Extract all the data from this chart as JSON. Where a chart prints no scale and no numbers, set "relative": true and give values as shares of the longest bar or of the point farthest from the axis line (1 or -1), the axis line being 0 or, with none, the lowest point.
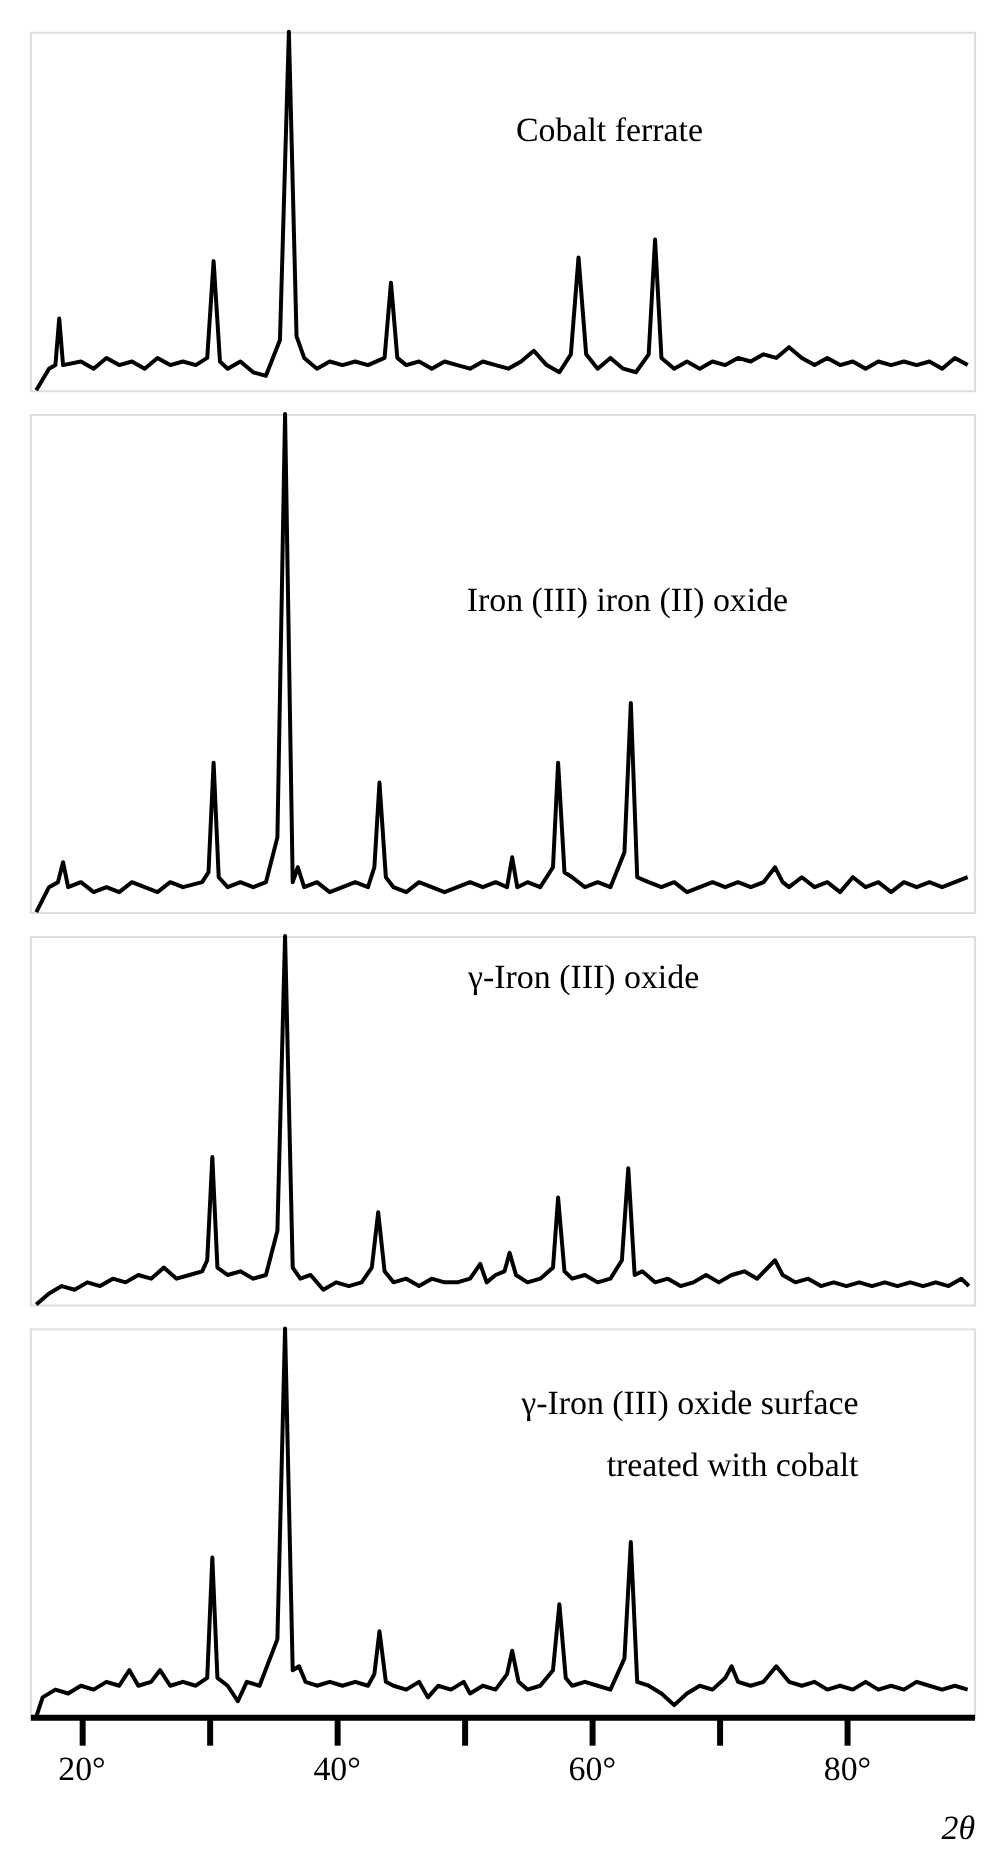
{
  "chart_data": [
    {
      "type": "line",
      "title": "Cobalt ferrate",
      "relative": true,
      "xlim": [
        16,
        90
      ],
      "tick_labels": false,
      "x": [
        16.5,
        17.5,
        18.0,
        18.3,
        18.6,
        20,
        21,
        22,
        23,
        24,
        25,
        26,
        27,
        28,
        29,
        29.9,
        30.4,
        30.9,
        31.5,
        32.5,
        33.5,
        34.5,
        35.6,
        36.3,
        36.9,
        37.5,
        38.5,
        39.5,
        40.5,
        41.5,
        42.5,
        43.8,
        44.3,
        44.8,
        45.5,
        46.5,
        47.5,
        48.5,
        49.5,
        50.5,
        51.5,
        52.5,
        53.5,
        54.5,
        55.5,
        56.5,
        57.5,
        58.4,
        59.0,
        59.6,
        60.5,
        61.5,
        62.5,
        63.5,
        64.5,
        65.0,
        65.5,
        66.5,
        67.5,
        68.5,
        69.5,
        70.5,
        71.5,
        72.5,
        73.5,
        74.5,
        75.5,
        76.5,
        77.5,
        78.5,
        79.5,
        80.5,
        81.5,
        82.5,
        83.5,
        84.5,
        85.5,
        86.5,
        87.5,
        88.5,
        89.5
      ],
      "series": [
        {
          "color": "#000000",
          "values": [
            0.0,
            0.06,
            0.07,
            0.2,
            0.07,
            0.08,
            0.06,
            0.09,
            0.07,
            0.08,
            0.06,
            0.09,
            0.07,
            0.08,
            0.07,
            0.09,
            0.36,
            0.08,
            0.06,
            0.08,
            0.05,
            0.04,
            0.14,
            1.0,
            0.15,
            0.09,
            0.06,
            0.08,
            0.07,
            0.08,
            0.07,
            0.09,
            0.3,
            0.09,
            0.07,
            0.08,
            0.06,
            0.08,
            0.07,
            0.06,
            0.08,
            0.07,
            0.06,
            0.08,
            0.11,
            0.07,
            0.05,
            0.1,
            0.37,
            0.1,
            0.06,
            0.09,
            0.06,
            0.05,
            0.1,
            0.42,
            0.09,
            0.06,
            0.08,
            0.06,
            0.08,
            0.07,
            0.09,
            0.08,
            0.1,
            0.09,
            0.12,
            0.09,
            0.07,
            0.09,
            0.07,
            0.08,
            0.06,
            0.08,
            0.07,
            0.08,
            0.07,
            0.08,
            0.06,
            0.09,
            0.07
          ]
        }
      ]
    },
    {
      "type": "line",
      "title": "Iron (III) iron (II) oxide",
      "relative": true,
      "xlim": [
        16,
        90
      ],
      "tick_labels": false,
      "x": [
        16.5,
        17.5,
        18.2,
        18.6,
        19.0,
        20,
        21,
        22,
        23,
        24,
        25,
        26,
        27,
        28,
        29.5,
        30.0,
        30.4,
        30.8,
        31.5,
        32.5,
        33.5,
        34.5,
        35.4,
        36.0,
        36.6,
        37.0,
        37.5,
        38.5,
        39.5,
        40.5,
        41.5,
        42.5,
        43.0,
        43.4,
        43.9,
        44.5,
        45.5,
        46.5,
        47.5,
        48.5,
        49.5,
        50.5,
        51.5,
        52.5,
        53.4,
        53.8,
        54.2,
        55.0,
        56.0,
        57.0,
        57.4,
        57.9,
        58.5,
        59.5,
        60.5,
        61.5,
        62.6,
        63.1,
        63.6,
        64.5,
        65.5,
        66.5,
        67.5,
        68.5,
        69.5,
        70.5,
        71.5,
        72.5,
        73.5,
        74.4,
        75.0,
        75.5,
        76.5,
        77.5,
        78.5,
        79.5,
        80.5,
        81.5,
        82.5,
        83.5,
        84.5,
        85.5,
        86.5,
        87.5,
        88.5,
        89.5
      ],
      "series": [
        {
          "color": "#000000",
          "values": [
            0.0,
            0.05,
            0.06,
            0.1,
            0.05,
            0.06,
            0.04,
            0.05,
            0.04,
            0.06,
            0.05,
            0.04,
            0.06,
            0.05,
            0.06,
            0.08,
            0.3,
            0.07,
            0.05,
            0.06,
            0.05,
            0.06,
            0.15,
            1.0,
            0.06,
            0.09,
            0.05,
            0.06,
            0.04,
            0.05,
            0.06,
            0.05,
            0.09,
            0.26,
            0.07,
            0.05,
            0.04,
            0.06,
            0.05,
            0.04,
            0.05,
            0.06,
            0.05,
            0.06,
            0.05,
            0.11,
            0.05,
            0.06,
            0.05,
            0.09,
            0.3,
            0.08,
            0.07,
            0.05,
            0.06,
            0.05,
            0.12,
            0.42,
            0.07,
            0.06,
            0.05,
            0.06,
            0.04,
            0.05,
            0.06,
            0.05,
            0.06,
            0.05,
            0.06,
            0.09,
            0.06,
            0.05,
            0.07,
            0.05,
            0.06,
            0.04,
            0.07,
            0.05,
            0.06,
            0.04,
            0.06,
            0.05,
            0.06,
            0.05,
            0.06,
            0.07
          ]
        }
      ]
    },
    {
      "type": "line",
      "title": "γ-Iron (III) oxide",
      "relative": true,
      "xlim": [
        16,
        90
      ],
      "tick_labels": false,
      "x": [
        16.5,
        17.5,
        18.5,
        19.5,
        20.5,
        21.5,
        22.5,
        23.5,
        24.5,
        25.5,
        26.5,
        27.5,
        28.5,
        29.5,
        29.9,
        30.3,
        30.7,
        31.5,
        32.5,
        33.5,
        34.5,
        35.4,
        36.0,
        36.6,
        37.2,
        38,
        39,
        40,
        41,
        42,
        42.8,
        43.3,
        43.8,
        44.5,
        45.5,
        46.5,
        47.5,
        48.5,
        49.5,
        50.5,
        51.3,
        51.8,
        52.5,
        53.2,
        53.6,
        54.1,
        55,
        56,
        57.0,
        57.4,
        57.9,
        58.5,
        59.5,
        60.5,
        61.5,
        62.4,
        62.9,
        63.4,
        64,
        65,
        66,
        67,
        68,
        69,
        70,
        71,
        72,
        73,
        74.4,
        75,
        76,
        77,
        78,
        79,
        80,
        81,
        82,
        83,
        84,
        85,
        86,
        87,
        88,
        89,
        89.6
      ],
      "series": [
        {
          "color": "#000000",
          "values": [
            0.0,
            0.03,
            0.05,
            0.04,
            0.06,
            0.05,
            0.07,
            0.06,
            0.08,
            0.07,
            0.1,
            0.07,
            0.08,
            0.09,
            0.12,
            0.4,
            0.1,
            0.08,
            0.09,
            0.07,
            0.08,
            0.2,
            1.0,
            0.1,
            0.07,
            0.08,
            0.04,
            0.06,
            0.05,
            0.06,
            0.1,
            0.25,
            0.09,
            0.06,
            0.07,
            0.05,
            0.07,
            0.06,
            0.06,
            0.07,
            0.11,
            0.06,
            0.08,
            0.09,
            0.14,
            0.08,
            0.06,
            0.07,
            0.1,
            0.29,
            0.09,
            0.07,
            0.08,
            0.06,
            0.07,
            0.12,
            0.37,
            0.08,
            0.09,
            0.06,
            0.07,
            0.05,
            0.06,
            0.08,
            0.06,
            0.08,
            0.09,
            0.07,
            0.12,
            0.08,
            0.06,
            0.07,
            0.05,
            0.06,
            0.05,
            0.06,
            0.05,
            0.06,
            0.05,
            0.06,
            0.05,
            0.06,
            0.05,
            0.07,
            0.05
          ]
        }
      ]
    },
    {
      "type": "line",
      "title": "γ-Iron (III) oxide surface\ntreated with cobalt",
      "relative": true,
      "xlim": [
        16,
        90
      ],
      "tick_labels": "x",
      "xlabel": "2θ",
      "xticks": [
        {
          "value": 20,
          "label": "20°"
        },
        {
          "value": 30,
          "label": null
        },
        {
          "value": 40,
          "label": "40°"
        },
        {
          "value": 50,
          "label": null
        },
        {
          "value": 60,
          "label": "60°"
        },
        {
          "value": 70,
          "label": null
        },
        {
          "value": 80,
          "label": "80°"
        }
      ],
      "x": [
        16.5,
        17,
        18,
        19,
        20,
        21,
        22,
        23,
        23.8,
        24.5,
        25.5,
        26.2,
        27,
        28,
        29,
        29.9,
        30.3,
        30.7,
        31.5,
        32.3,
        33,
        34,
        35.4,
        36.0,
        36.6,
        37.1,
        37.6,
        38.5,
        39.5,
        40.5,
        41.5,
        42.5,
        43.0,
        43.4,
        43.9,
        44.5,
        45.5,
        46.5,
        47.2,
        48,
        49,
        50,
        50.5,
        51.5,
        52.5,
        53.4,
        53.8,
        54.3,
        55,
        56,
        57.0,
        57.5,
        58,
        58.5,
        59.5,
        60.5,
        61.5,
        62.6,
        63.1,
        63.6,
        64.5,
        65.5,
        66.5,
        67.5,
        68.5,
        69.5,
        70.5,
        71,
        71.5,
        72.5,
        73.5,
        74.5,
        75.5,
        76.5,
        77.5,
        78.5,
        79.5,
        80.5,
        81.5,
        82.5,
        83.5,
        84.5,
        85.5,
        86.5,
        87.5,
        88.5,
        89.5
      ],
      "series": [
        {
          "color": "#000000",
          "values": [
            0.0,
            0.05,
            0.07,
            0.06,
            0.08,
            0.07,
            0.09,
            0.08,
            0.12,
            0.08,
            0.09,
            0.12,
            0.08,
            0.09,
            0.08,
            0.1,
            0.41,
            0.1,
            0.08,
            0.04,
            0.09,
            0.08,
            0.2,
            1.0,
            0.12,
            0.13,
            0.09,
            0.08,
            0.09,
            0.08,
            0.09,
            0.08,
            0.11,
            0.22,
            0.09,
            0.08,
            0.07,
            0.09,
            0.05,
            0.08,
            0.07,
            0.09,
            0.06,
            0.08,
            0.07,
            0.11,
            0.17,
            0.09,
            0.07,
            0.08,
            0.12,
            0.29,
            0.1,
            0.08,
            0.09,
            0.08,
            0.07,
            0.15,
            0.45,
            0.09,
            0.08,
            0.06,
            0.03,
            0.06,
            0.08,
            0.07,
            0.1,
            0.13,
            0.09,
            0.08,
            0.09,
            0.13,
            0.09,
            0.08,
            0.09,
            0.07,
            0.08,
            0.07,
            0.09,
            0.07,
            0.08,
            0.07,
            0.09,
            0.08,
            0.07,
            0.08,
            0.07
          ]
        }
      ]
    }
  ]
}
